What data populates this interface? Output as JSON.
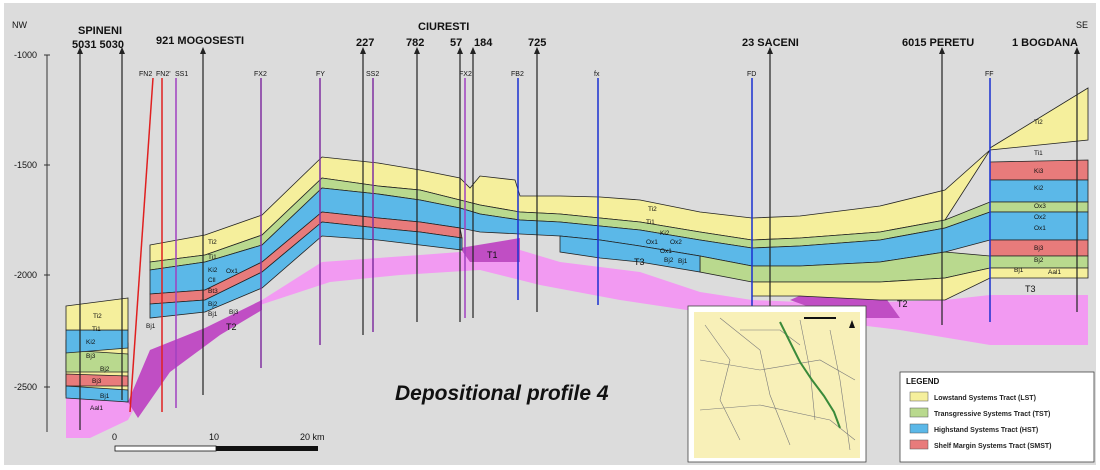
{
  "profile": {
    "title": "Depositional profile 4",
    "direction_left": "NW",
    "direction_right": "SE",
    "depth_ticks": [
      "-1000",
      "-1500",
      "-2000",
      "-2500"
    ],
    "scale": {
      "labels": [
        "0",
        "10",
        "20 km"
      ]
    }
  },
  "well_labels": {
    "spineni": "SPINENI",
    "spineni_num": "5031 5030",
    "mogosesti": "921 MOGOSESTI",
    "w227": "227",
    "ciuresti": "CIURESTI",
    "w782": "782",
    "w57": "57",
    "w184": "184",
    "w725": "725",
    "saceni": "23 SACENI",
    "peretu": "6015 PERETU",
    "bogdana": "1 BOGDANA"
  },
  "fault_labels": [
    "FN2",
    "FN2'",
    "SS1",
    "FX2",
    "FY",
    "SS2",
    "FX2",
    "FB2",
    "fx",
    "FD",
    "FF"
  ],
  "unit_labels": [
    "Ti2",
    "Ti1",
    "Ki2",
    "Bj3",
    "Bj1",
    "Bj3",
    "Aal1",
    "Bj2",
    "Bj1",
    "Ti2",
    "Ti1",
    "Ki2",
    "Ox1",
    "Cll",
    "Bt3",
    "Bj2",
    "Bj1",
    "Bj3",
    "Ti2",
    "Ti1",
    "Ki2",
    "Ox1",
    "Ox2",
    "Ox1",
    "Bj2",
    "Bj1",
    "Ti2",
    "Ti1",
    "Ki3",
    "Ki2",
    "Ox3",
    "Ox2",
    "Ox1",
    "Bj3",
    "Bj2",
    "Bj1",
    "Aal1"
  ],
  "big_labels": [
    "T2",
    "T1",
    "T3",
    "T2",
    "T3"
  ],
  "legend": {
    "title": "LEGEND",
    "items": [
      {
        "label": "Lowstand Systems Tract (LST)",
        "color": "#f5ef9c"
      },
      {
        "label": "Transgressive Systems Tract (TST)",
        "color": "#b9d98e"
      },
      {
        "label": "Highstand Systems Tract (HST)",
        "color": "#5bb8e8"
      },
      {
        "label": "Shelf Margin Systems Tract (SMST)",
        "color": "#e87b7b"
      }
    ]
  },
  "colors": {
    "lst": "#f5ef9c",
    "tst": "#b9d98e",
    "hst": "#5bb8e8",
    "smst": "#e87b7b",
    "triassic": "#f29af2",
    "triassic_dark": "#c04ec4"
  }
}
